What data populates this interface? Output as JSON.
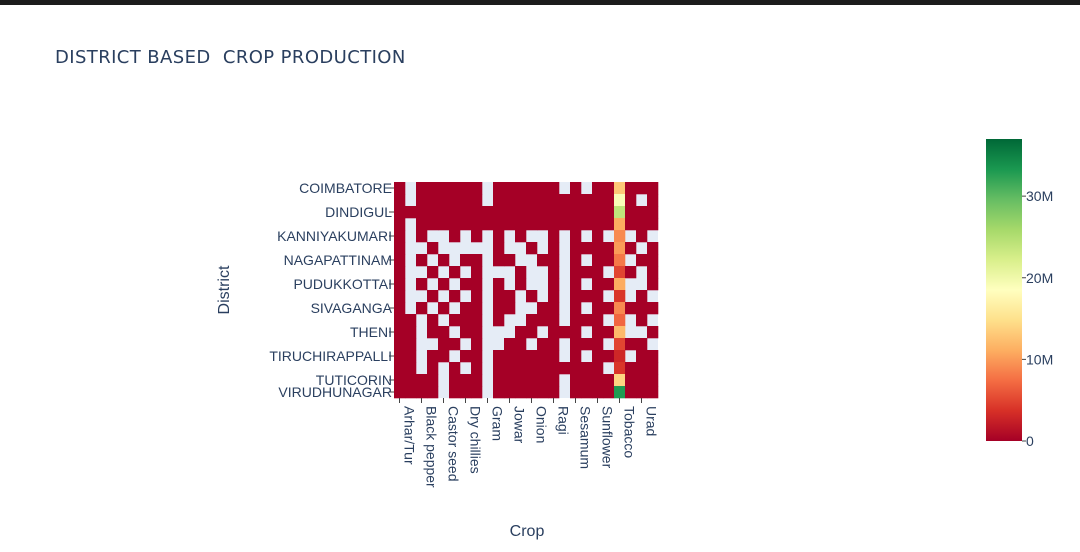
{
  "title": "DISTRICT BASED  CROP PRODUCTION",
  "chart_data": {
    "type": "heatmap",
    "title": "DISTRICT BASED  CROP PRODUCTION",
    "xlabel": "Crop",
    "ylabel": "District",
    "x_tick_labels": [
      "Arhar/Tur",
      "Black pepper",
      "Castor seed",
      "Dry chillies",
      "Gram",
      "Jowar",
      "Onion",
      "Ragi",
      "Sesamum",
      "Sunflower",
      "Tobacco",
      "Urad"
    ],
    "y_tick_labels": [
      "COIMBATORE",
      "DINDIGUL",
      "KANNIYAKUMARI",
      "NAGAPATTINAM",
      "PUDUKKOTTAI",
      "SIVAGANGA",
      "THENI",
      "TIRUCHIRAPPALLI",
      "TUTICORIN",
      "VIRUDHUNAGAR"
    ],
    "colorscale": [
      "#a50026",
      "#d73027",
      "#f46d43",
      "#fdae61",
      "#fee08b",
      "#ffffbf",
      "#d9ef8b",
      "#a6d96a",
      "#66bd63",
      "#1a9850",
      "#006837"
    ],
    "missing_color": "#e5ecf6",
    "zmin": 0,
    "zmax": 37000000,
    "colorbar_ticks": [
      {
        "value": 0,
        "label": "0"
      },
      {
        "value": 10000000,
        "label": "10M"
      },
      {
        "value": 20000000,
        "label": "20M"
      },
      {
        "value": 30000000,
        "label": "30M"
      }
    ],
    "n_columns": 24,
    "n_rows": 18,
    "x_tick_columns": [
      0,
      2,
      4,
      6,
      8,
      10,
      12,
      14,
      16,
      18,
      20,
      22
    ],
    "y_tick_rows": [
      0,
      2,
      4,
      6,
      8,
      10,
      12,
      14,
      16,
      18
    ],
    "cells": [
      [
        0,
        0,
        0,
        0,
        0,
        0,
        0,
        0,
        0,
        0,
        0,
        0,
        0,
        0,
        0,
        0,
        0,
        0,
        0,
        0,
        0,
        0,
        0,
        0,
        0,
        0,
        0,
        0,
        0,
        0,
        0,
        0,
        0,
        0,
        0,
        0,
        0,
        0,
        0,
        0,
        0,
        0,
        0,
        0,
        0,
        0,
        0,
        0,
        0
      ],
      [
        0,
        0,
        0,
        0,
        0,
        0,
        0,
        0,
        0,
        0,
        0,
        0,
        0,
        0,
        0,
        0,
        0,
        0,
        0,
        0,
        0,
        0,
        0,
        0,
        0,
        0,
        0,
        0,
        0,
        0,
        0,
        0,
        0,
        0,
        0,
        0,
        0,
        0,
        0,
        0,
        0,
        0,
        0,
        0,
        0,
        0,
        0,
        0,
        0
      ]
    ],
    "grid": [
      [
        0,
        null,
        0,
        0,
        0,
        0,
        0,
        0,
        null,
        0,
        0,
        0,
        0,
        0,
        0,
        null,
        0,
        null,
        0,
        0,
        13000000,
        0,
        0,
        0
      ],
      [
        0,
        null,
        0,
        0,
        0,
        0,
        0,
        0,
        null,
        0,
        0,
        0,
        0,
        0,
        0,
        0,
        0,
        0,
        0,
        0,
        19000000,
        0,
        null,
        0
      ],
      [
        0,
        0,
        0,
        0,
        0,
        0,
        0,
        0,
        0,
        0,
        0,
        0,
        0,
        0,
        0,
        0,
        0,
        0,
        0,
        0,
        24000000,
        0,
        0,
        0
      ],
      [
        0,
        null,
        0,
        0,
        0,
        0,
        0,
        0,
        0,
        0,
        0,
        0,
        0,
        0,
        0,
        0,
        0,
        0,
        0,
        0,
        11000000,
        0,
        0,
        0
      ],
      [
        0,
        null,
        0,
        null,
        null,
        0,
        null,
        0,
        null,
        0,
        null,
        0,
        null,
        null,
        0,
        null,
        0,
        null,
        0,
        null,
        9000000,
        null,
        0,
        null
      ],
      [
        0,
        null,
        null,
        0,
        null,
        null,
        null,
        null,
        null,
        0,
        null,
        null,
        0,
        null,
        0,
        null,
        0,
        0,
        0,
        0,
        10000000,
        0,
        null,
        0
      ],
      [
        0,
        null,
        0,
        null,
        0,
        null,
        0,
        0,
        null,
        0,
        0,
        null,
        null,
        0,
        0,
        null,
        0,
        null,
        0,
        0,
        8000000,
        null,
        0,
        0
      ],
      [
        0,
        null,
        null,
        0,
        null,
        0,
        null,
        0,
        null,
        null,
        null,
        0,
        null,
        null,
        0,
        null,
        0,
        0,
        0,
        null,
        5000000,
        0,
        null,
        0
      ],
      [
        0,
        null,
        0,
        null,
        0,
        null,
        0,
        0,
        null,
        0,
        null,
        0,
        null,
        null,
        0,
        null,
        0,
        null,
        0,
        0,
        11000000,
        null,
        null,
        0
      ],
      [
        0,
        null,
        null,
        0,
        null,
        0,
        null,
        0,
        null,
        0,
        0,
        null,
        0,
        null,
        0,
        null,
        0,
        0,
        0,
        null,
        4000000,
        null,
        0,
        null
      ],
      [
        0,
        null,
        0,
        null,
        0,
        null,
        0,
        0,
        null,
        0,
        0,
        null,
        null,
        0,
        0,
        null,
        0,
        null,
        0,
        0,
        9000000,
        0,
        0,
        0
      ],
      [
        0,
        0,
        null,
        0,
        null,
        0,
        0,
        0,
        null,
        0,
        null,
        null,
        0,
        0,
        0,
        null,
        0,
        0,
        0,
        null,
        7000000,
        null,
        0,
        null
      ],
      [
        0,
        0,
        null,
        0,
        0,
        null,
        0,
        0,
        null,
        null,
        null,
        0,
        0,
        null,
        0,
        0,
        0,
        null,
        0,
        0,
        12000000,
        null,
        null,
        0
      ],
      [
        0,
        0,
        null,
        null,
        0,
        0,
        null,
        0,
        null,
        null,
        0,
        0,
        null,
        0,
        0,
        null,
        0,
        0,
        0,
        null,
        5000000,
        0,
        0,
        null
      ],
      [
        0,
        0,
        null,
        0,
        0,
        null,
        0,
        0,
        null,
        0,
        0,
        0,
        0,
        0,
        0,
        null,
        0,
        null,
        0,
        0,
        3000000,
        null,
        0,
        0
      ],
      [
        0,
        0,
        null,
        0,
        null,
        0,
        null,
        0,
        null,
        0,
        0,
        0,
        0,
        0,
        0,
        0,
        0,
        0,
        0,
        null,
        4000000,
        0,
        0,
        0
      ],
      [
        0,
        0,
        0,
        0,
        null,
        0,
        0,
        0,
        null,
        0,
        0,
        0,
        0,
        0,
        0,
        null,
        0,
        0,
        0,
        0,
        14000000,
        0,
        0,
        0
      ],
      [
        0,
        0,
        0,
        0,
        null,
        0,
        0,
        0,
        null,
        0,
        0,
        0,
        0,
        0,
        0,
        null,
        0,
        0,
        0,
        0,
        33000000,
        0,
        0,
        0
      ]
    ]
  }
}
